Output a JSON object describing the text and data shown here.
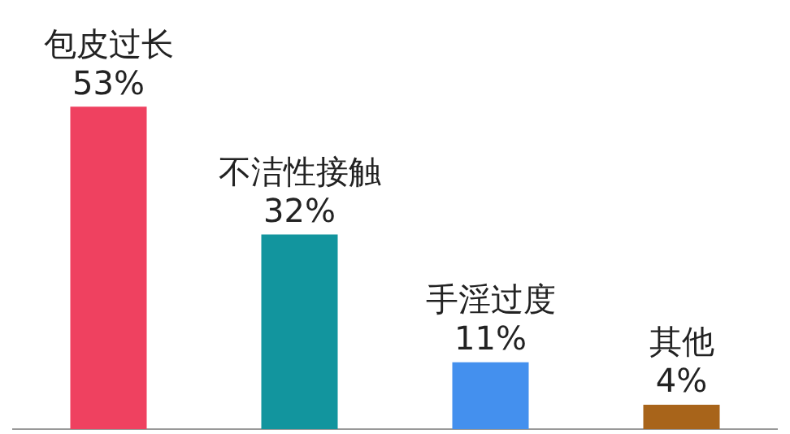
{
  "chart_data": {
    "type": "bar",
    "categories": [
      "包皮过长",
      "不洁性接触",
      "手淫过度",
      "其他"
    ],
    "values": [
      53,
      32,
      11,
      4
    ],
    "colors": [
      "#ef4160",
      "#12959e",
      "#4490ee",
      "#a8641a"
    ],
    "value_labels": [
      "53%",
      "32%",
      "11%",
      "4%"
    ],
    "tick_labels": false,
    "grid": false,
    "legend": false
  }
}
